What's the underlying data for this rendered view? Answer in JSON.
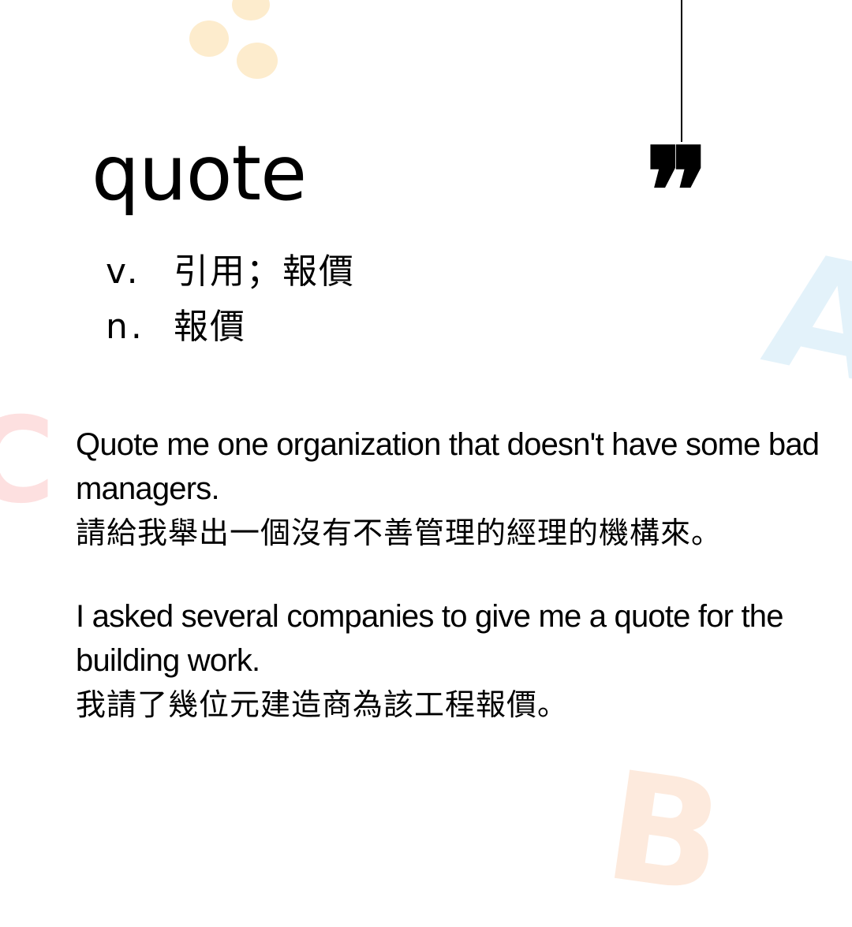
{
  "word": "quote",
  "quote_mark": "❞",
  "definitions": [
    {
      "pos": "v.",
      "meaning": "引用；報價"
    },
    {
      "pos": "n.",
      "meaning": "報價"
    }
  ],
  "examples": [
    {
      "en": "Quote me one organization that doesn't have some bad managers.",
      "zh": "請給我舉出一個沒有不善管理的經理的機構來。"
    },
    {
      "en": "I asked several companies to give me a quote for the building work.",
      "zh": "我請了幾位元建造商為該工程報價。"
    }
  ],
  "decorations": {
    "letter_a": "A",
    "letter_b": "B",
    "letter_c": "C",
    "color_dots": "#fdeccd",
    "color_a": "#e3f2fa",
    "color_b": "#fdeadd",
    "color_c": "#fde0e0"
  }
}
